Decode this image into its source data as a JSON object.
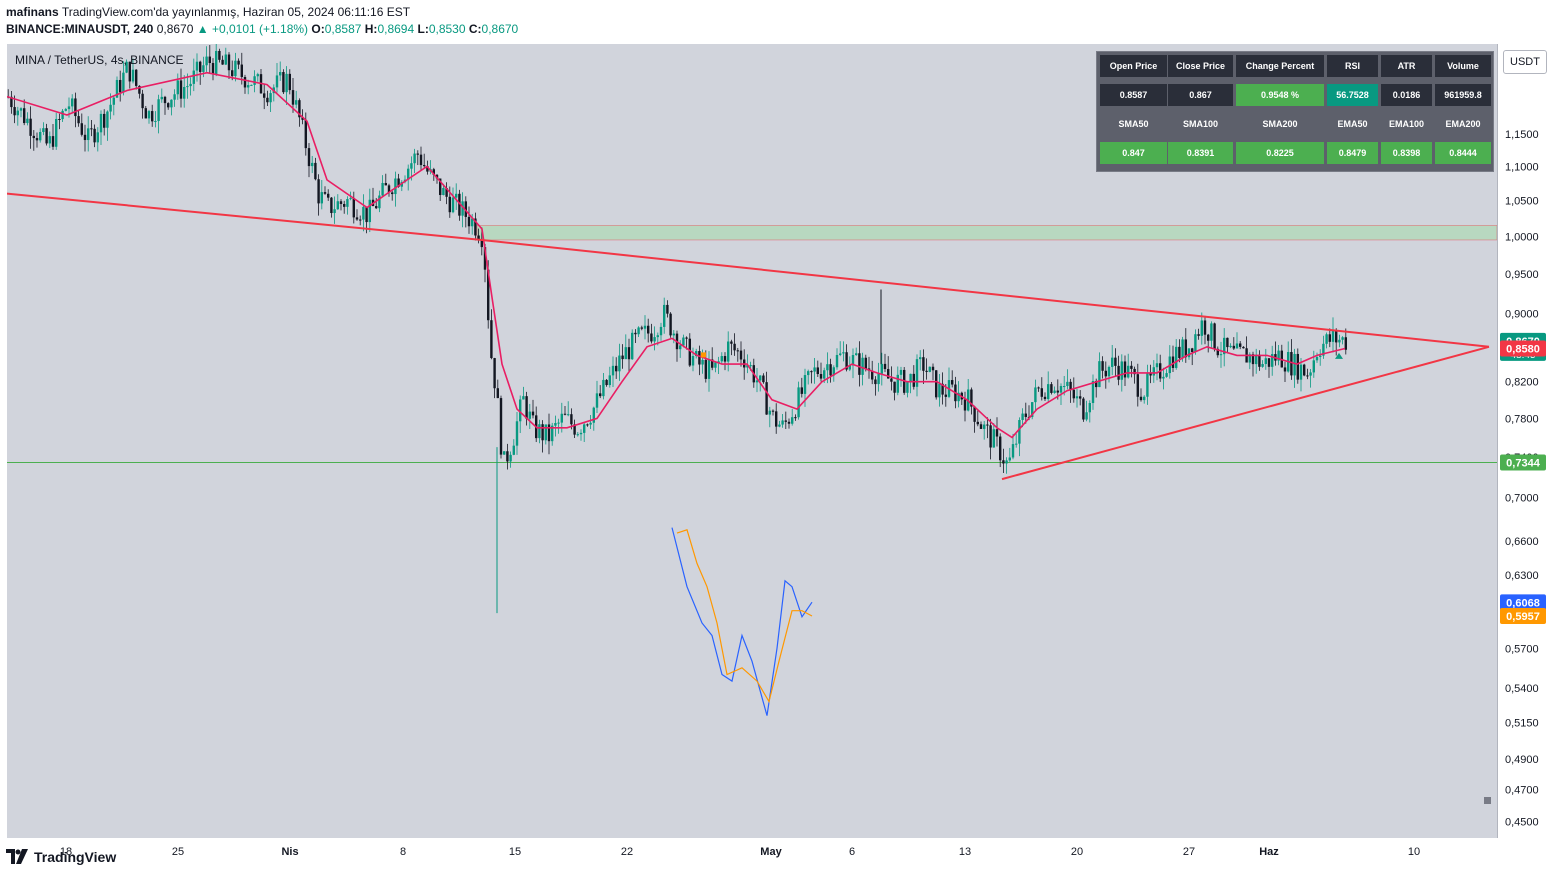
{
  "header": {
    "author": "mafinans",
    "published": "TradingView.com'da yayınlanmış, Haziran 05, 2024 06:11:16 EST",
    "symbol": "BINANCE:MINAUSDT, 240",
    "last": "0,8670",
    "change": "▲ +0,0101 (+1.18%)",
    "o_label": "O:",
    "o_value": "0,8587",
    "h_label": "H:",
    "h_value": "0,8694",
    "l_label": "L:",
    "l_value": "0,8530",
    "c_label": "C:",
    "c_value": "0,8670"
  },
  "legend_title": "MINA / TetherUS, 4s, BINANCE",
  "currency_button": "USDT",
  "logo_text": "TradingView",
  "table": {
    "headers": [
      "Open Price",
      "Close Price",
      "Change Percent",
      "RSI",
      "ATR",
      "Volume"
    ],
    "values": [
      "0.8587",
      "0.867",
      "0.9548 %",
      "56.7528",
      "0.0186",
      "961959.8"
    ],
    "ma_labels": [
      "SMA50",
      "SMA100",
      "SMA200",
      "EMA50",
      "EMA100",
      "EMA200"
    ],
    "ma_values": [
      "0.847",
      "0.8391",
      "0.8225",
      "0.8479",
      "0.8398",
      "0.8444"
    ]
  },
  "chart_data": {
    "type": "candlestick",
    "symbol": "MINAUSDT",
    "interval": "240",
    "scale": "log",
    "ylim": [
      0.44,
      1.3
    ],
    "x_ticks": [
      "18",
      "25",
      "Nis",
      "8",
      "15",
      "22",
      "May",
      "6",
      "13",
      "20",
      "27",
      "Haz",
      "10"
    ],
    "y_ticks": [
      "1,1500",
      "1,1000",
      "1,0500",
      "1,0000",
      "0,9500",
      "0,9000",
      "0,8200",
      "0,7800",
      "0,7400",
      "0,7000",
      "0,6600",
      "0,6300",
      "0,5700",
      "0,5400",
      "0,5150",
      "0,4900",
      "0,4700",
      "0,4500"
    ],
    "price_labels": [
      {
        "text": "0,8670",
        "sub": "48:45",
        "value": 0.867,
        "color": "#089981"
      },
      {
        "text": "0,8580",
        "value": 0.858,
        "color": "#f23645"
      },
      {
        "text": "0,7344",
        "value": 0.7344,
        "color": "#4caf50"
      },
      {
        "text": "0,6068",
        "value": 0.6068,
        "color": "#2962ff"
      },
      {
        "text": "0,5957",
        "value": 0.5957,
        "color": "#ff9800"
      }
    ],
    "close_series": [
      [
        0,
        1.21
      ],
      [
        20,
        1.17
      ],
      [
        40,
        1.13
      ],
      [
        60,
        1.2
      ],
      [
        80,
        1.14
      ],
      [
        100,
        1.19
      ],
      [
        120,
        1.26
      ],
      [
        140,
        1.18
      ],
      [
        160,
        1.21
      ],
      [
        180,
        1.23
      ],
      [
        200,
        1.27
      ],
      [
        220,
        1.26
      ],
      [
        240,
        1.24
      ],
      [
        260,
        1.22
      ],
      [
        280,
        1.24
      ],
      [
        300,
        1.12
      ],
      [
        310,
        1.06
      ],
      [
        320,
        1.04
      ],
      [
        340,
        1.05
      ],
      [
        360,
        1.03
      ],
      [
        380,
        1.07
      ],
      [
        400,
        1.1
      ],
      [
        410,
        1.12
      ],
      [
        420,
        1.09
      ],
      [
        435,
        1.06
      ],
      [
        450,
        1.04
      ],
      [
        465,
        1.02
      ],
      [
        475,
        1.0
      ],
      [
        482,
        0.86
      ],
      [
        488,
        0.81
      ],
      [
        495,
        0.73
      ],
      [
        505,
        0.76
      ],
      [
        515,
        0.8
      ],
      [
        525,
        0.77
      ],
      [
        540,
        0.76
      ],
      [
        555,
        0.78
      ],
      [
        570,
        0.77
      ],
      [
        585,
        0.79
      ],
      [
        600,
        0.82
      ],
      [
        615,
        0.85
      ],
      [
        630,
        0.87
      ],
      [
        645,
        0.88
      ],
      [
        655,
        0.9
      ],
      [
        665,
        0.88
      ],
      [
        675,
        0.86
      ],
      [
        690,
        0.84
      ],
      [
        705,
        0.83
      ],
      [
        720,
        0.86
      ],
      [
        735,
        0.85
      ],
      [
        750,
        0.82
      ],
      [
        765,
        0.78
      ],
      [
        775,
        0.77
      ],
      [
        790,
        0.8
      ],
      [
        805,
        0.83
      ],
      [
        820,
        0.84
      ],
      [
        835,
        0.85
      ],
      [
        850,
        0.84
      ],
      [
        870,
        0.83
      ],
      [
        885,
        0.82
      ],
      [
        900,
        0.82
      ],
      [
        915,
        0.84
      ],
      [
        930,
        0.81
      ],
      [
        945,
        0.81
      ],
      [
        960,
        0.8
      ],
      [
        975,
        0.77
      ],
      [
        990,
        0.75
      ],
      [
        1000,
        0.73
      ],
      [
        1015,
        0.78
      ],
      [
        1030,
        0.81
      ],
      [
        1045,
        0.82
      ],
      [
        1060,
        0.81
      ],
      [
        1075,
        0.79
      ],
      [
        1090,
        0.83
      ],
      [
        1105,
        0.84
      ],
      [
        1120,
        0.83
      ],
      [
        1135,
        0.81
      ],
      [
        1150,
        0.83
      ],
      [
        1165,
        0.85
      ],
      [
        1180,
        0.86
      ],
      [
        1195,
        0.89
      ],
      [
        1210,
        0.86
      ],
      [
        1225,
        0.85
      ],
      [
        1240,
        0.85
      ],
      [
        1255,
        0.84
      ],
      [
        1270,
        0.85
      ],
      [
        1285,
        0.84
      ],
      [
        1300,
        0.83
      ],
      [
        1310,
        0.86
      ],
      [
        1325,
        0.87
      ],
      [
        1338,
        0.867
      ]
    ],
    "ema_series": [
      [
        0,
        1.21
      ],
      [
        60,
        1.18
      ],
      [
        120,
        1.22
      ],
      [
        200,
        1.25
      ],
      [
        260,
        1.23
      ],
      [
        300,
        1.17
      ],
      [
        320,
        1.08
      ],
      [
        360,
        1.04
      ],
      [
        400,
        1.08
      ],
      [
        420,
        1.1
      ],
      [
        450,
        1.05
      ],
      [
        475,
        1.01
      ],
      [
        485,
        0.92
      ],
      [
        495,
        0.84
      ],
      [
        510,
        0.79
      ],
      [
        530,
        0.77
      ],
      [
        560,
        0.77
      ],
      [
        590,
        0.78
      ],
      [
        615,
        0.82
      ],
      [
        640,
        0.86
      ],
      [
        665,
        0.87
      ],
      [
        690,
        0.85
      ],
      [
        715,
        0.84
      ],
      [
        740,
        0.84
      ],
      [
        765,
        0.8
      ],
      [
        790,
        0.79
      ],
      [
        815,
        0.82
      ],
      [
        845,
        0.84
      ],
      [
        870,
        0.83
      ],
      [
        900,
        0.82
      ],
      [
        930,
        0.82
      ],
      [
        960,
        0.8
      ],
      [
        990,
        0.77
      ],
      [
        1005,
        0.76
      ],
      [
        1030,
        0.79
      ],
      [
        1060,
        0.81
      ],
      [
        1090,
        0.82
      ],
      [
        1120,
        0.83
      ],
      [
        1150,
        0.83
      ],
      [
        1180,
        0.85
      ],
      [
        1200,
        0.86
      ],
      [
        1230,
        0.85
      ],
      [
        1260,
        0.85
      ],
      [
        1290,
        0.84
      ],
      [
        1310,
        0.85
      ],
      [
        1338,
        0.858
      ]
    ],
    "horizontal_lines": [
      {
        "name": "support",
        "value": 0.7344,
        "color": "#4caf50"
      }
    ],
    "zones": [
      {
        "name": "resistance-zone",
        "from": 0.995,
        "to": 1.015,
        "color": "#b8d8c0"
      }
    ],
    "trendlines": [
      {
        "name": "upper-trendline",
        "points": [
          [
            0,
            1.06
          ],
          [
            475,
            0.995
          ],
          [
            1482,
            0.86
          ]
        ],
        "color": "#f23645"
      },
      {
        "name": "lower-trendline",
        "points": [
          [
            995,
            0.718
          ],
          [
            1482,
            0.86
          ]
        ],
        "color": "#f23645"
      }
    ],
    "oscillator_blue": [
      [
        665,
        0.672
      ],
      [
        680,
        0.62
      ],
      [
        695,
        0.59
      ],
      [
        705,
        0.58
      ],
      [
        715,
        0.55
      ],
      [
        725,
        0.545
      ],
      [
        735,
        0.58
      ],
      [
        745,
        0.56
      ],
      [
        760,
        0.52
      ],
      [
        770,
        0.57
      ],
      [
        778,
        0.625
      ],
      [
        785,
        0.62
      ],
      [
        795,
        0.595
      ],
      [
        805,
        0.607
      ]
    ],
    "oscillator_orange": [
      [
        670,
        0.667
      ],
      [
        680,
        0.67
      ],
      [
        690,
        0.64
      ],
      [
        700,
        0.62
      ],
      [
        710,
        0.59
      ],
      [
        720,
        0.55
      ],
      [
        735,
        0.555
      ],
      [
        750,
        0.545
      ],
      [
        762,
        0.53
      ],
      [
        772,
        0.56
      ],
      [
        785,
        0.6
      ],
      [
        795,
        0.6
      ],
      [
        805,
        0.5957
      ]
    ]
  }
}
